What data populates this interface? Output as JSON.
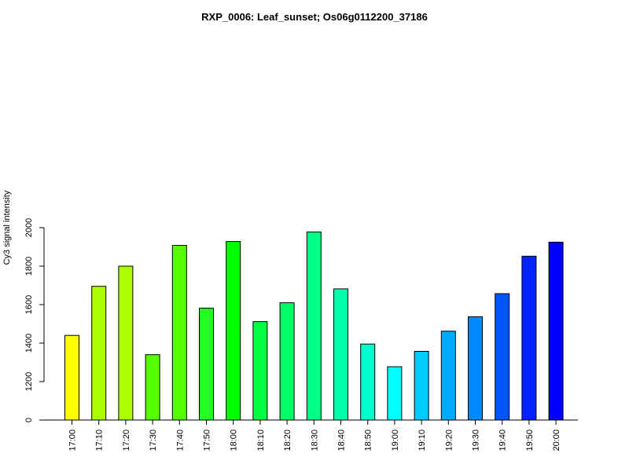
{
  "chart_data": {
    "type": "bar",
    "title": "RXP_0006: Leaf_sunset; Os06g0112200_37186",
    "xlabel": "",
    "ylabel": "Cy3 signal intensity",
    "categories": [
      "17:00",
      "17:10",
      "17:20",
      "17:30",
      "17:40",
      "17:50",
      "18:00",
      "18:10",
      "18:20",
      "18:30",
      "18:40",
      "18:50",
      "19:00",
      "19:10",
      "19:20",
      "19:30",
      "19:40",
      "19:50",
      "20:00"
    ],
    "values": [
      1440,
      1695,
      1800,
      1340,
      1908,
      1582,
      1928,
      1512,
      1610,
      1978,
      1682,
      1395,
      1277,
      1357,
      1462,
      1537,
      1657,
      1852,
      1925
    ],
    "colors": [
      "#FFFF00",
      "#AAFF00",
      "#AAFF00",
      "#55FF00",
      "#55FF00",
      "#22FF22",
      "#00FF00",
      "#00FF44",
      "#00FF66",
      "#00FF88",
      "#00FFAA",
      "#00FFCC",
      "#00FFFF",
      "#00CCFF",
      "#00AAFF",
      "#0088FF",
      "#0055FF",
      "#0022FF",
      "#0000FF"
    ],
    "y_axis": {
      "segments": [
        {
          "from": 0,
          "to": 0
        },
        {
          "from": 1000,
          "to": 2000
        }
      ],
      "ticks": [
        0,
        1200,
        1400,
        1600,
        1800,
        2000
      ],
      "tick_labels": [
        "0",
        "1200",
        "1400",
        "1600",
        "1800",
        "2000"
      ]
    },
    "grid": false,
    "legend": "none"
  }
}
